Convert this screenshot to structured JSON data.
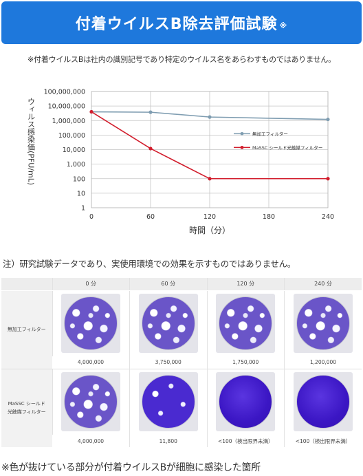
{
  "header": {
    "title": "付着ウイルスB除去評価試験",
    "title_mark": "※"
  },
  "note_top": "※付着ウイルスBは社内の識別記号であり特定のウイルス名をあらわすものではありません。",
  "chart_data": {
    "type": "line",
    "title": "",
    "xlabel": "時間（分）",
    "ylabel": "ウィルス感染価(PFU/mL)",
    "x": [
      0,
      60,
      120,
      240
    ],
    "xticks": [
      0,
      60,
      120,
      180,
      240
    ],
    "xlim": [
      0,
      240
    ],
    "ylim": [
      1,
      100000000
    ],
    "yscale": "log",
    "yticks": [
      "1",
      "10",
      "100",
      "1,000",
      "10,000",
      "100,000",
      "1,000,000",
      "10,000,000",
      "100,000,000"
    ],
    "grid": true,
    "legend_position": "right-middle",
    "series": [
      {
        "name": "無加工フィルター",
        "values": [
          4000000,
          3750000,
          1750000,
          1200000
        ],
        "color": "#7f9db1"
      },
      {
        "name": "MaSSC シールド光触媒フィルター",
        "values": [
          4000000,
          11800,
          100,
          100
        ],
        "color": "#d21e2d"
      }
    ]
  },
  "note_mid": "注）研究試験データであり、実使用環境での効果を示すものではありません。",
  "table": {
    "columns": [
      "0 分",
      "60 分",
      "120 分",
      "240 分"
    ],
    "rows": [
      {
        "label": "無加工フィルター",
        "values": [
          "4,000,000",
          "3,750,000",
          "1,750,000",
          "1,200,000"
        ]
      },
      {
        "label_line1": "MaSSC シールド",
        "label_line2": "光触媒フィルター",
        "values": [
          "4,000,000",
          "11,800",
          "<100（検出限界未満）",
          "<100（検出限界未満）"
        ]
      }
    ]
  },
  "note_bottom": "※色が抜けている部分が付着ウイルスBが細胞に感染した箇所"
}
